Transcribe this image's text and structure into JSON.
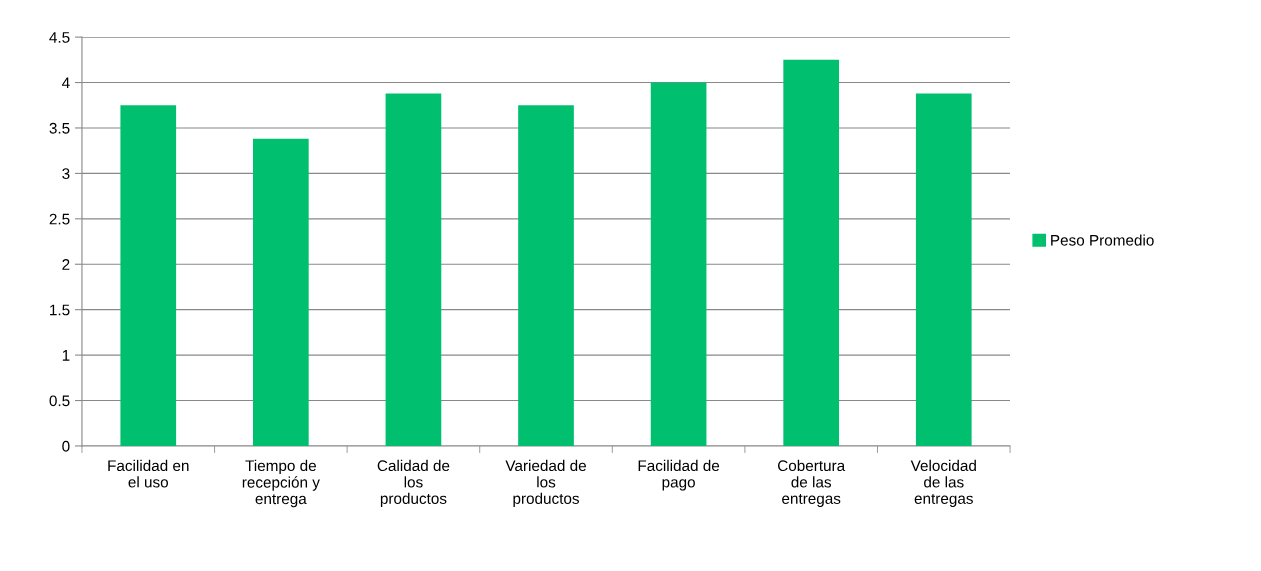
{
  "chart_data": {
    "type": "bar",
    "categories": [
      "Facilidad en\nel uso",
      "Tiempo de\nrecepción y\nentrega",
      "Calidad de\nlos\nproductos",
      "Variedad de\nlos\nproductos",
      "Facilidad de\npago",
      "Cobertura\nde las\nentregas",
      "Velocidad\nde las\nentregas"
    ],
    "series": [
      {
        "name": "Peso Promedio",
        "color": "#00c06f",
        "values": [
          3.75,
          3.38,
          3.88,
          3.75,
          4.0,
          4.25,
          3.88
        ]
      }
    ],
    "ylim": [
      0,
      4.5
    ],
    "yticks": [
      0,
      0.5,
      1,
      1.5,
      2,
      2.5,
      3,
      3.5,
      4,
      4.5
    ],
    "grid": "y",
    "legend": "right"
  }
}
